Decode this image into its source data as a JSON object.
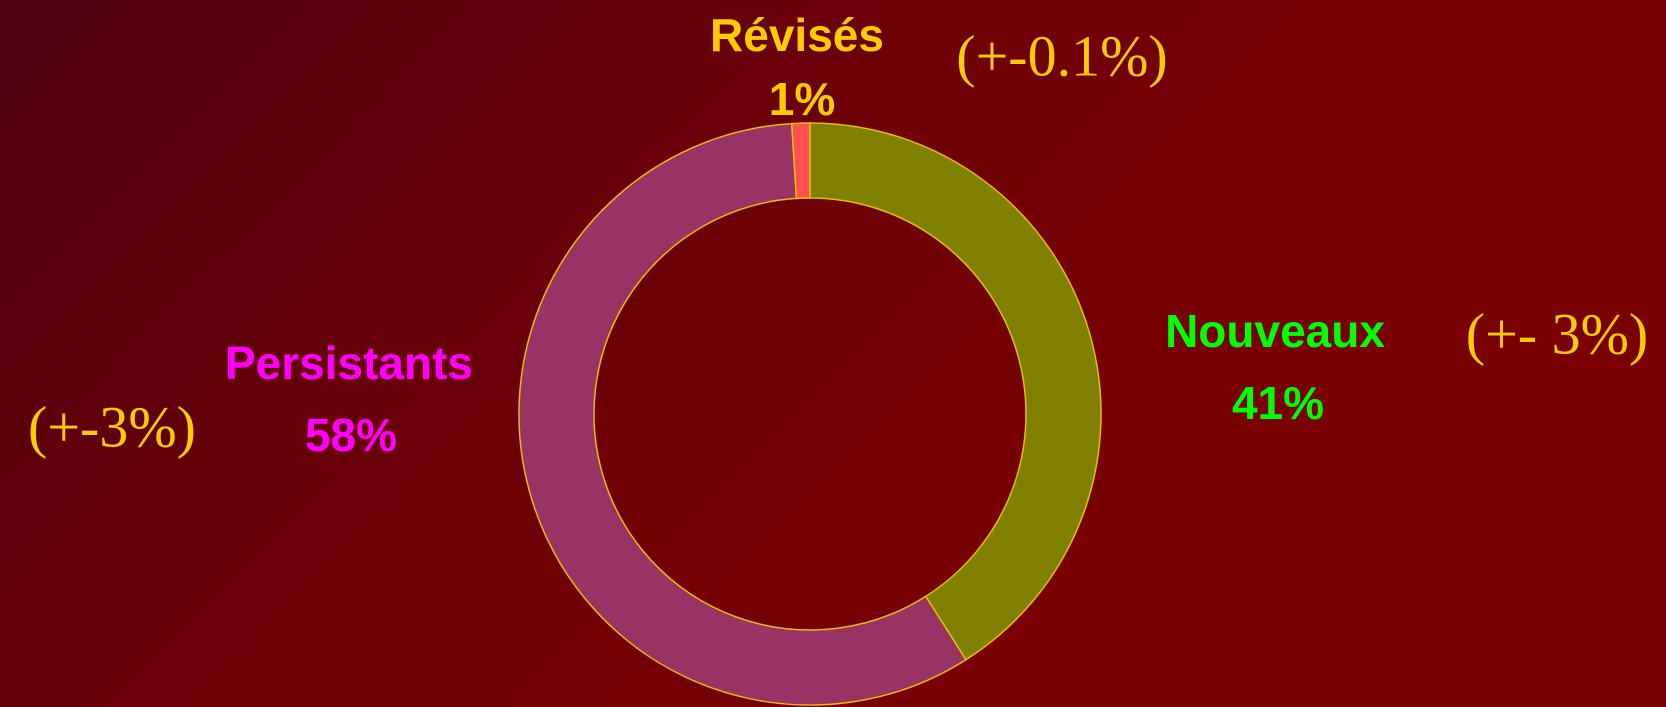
{
  "chart_data": {
    "type": "donut",
    "categories": [
      "Nouveaux",
      "Persistants",
      "Révisés"
    ],
    "values": [
      41,
      58,
      1
    ],
    "value_labels": [
      "41%",
      "58%",
      "1%"
    ],
    "annotations": [
      "(+- 3%)",
      "(+-3%)",
      "(+-0.1%)"
    ],
    "colors": [
      "#808000",
      "#993366",
      "#ff5050"
    ],
    "label_colors": [
      "#00ff00",
      "#ff00ff",
      "#ffcc00"
    ],
    "annotation_color": "#ffcc00"
  }
}
